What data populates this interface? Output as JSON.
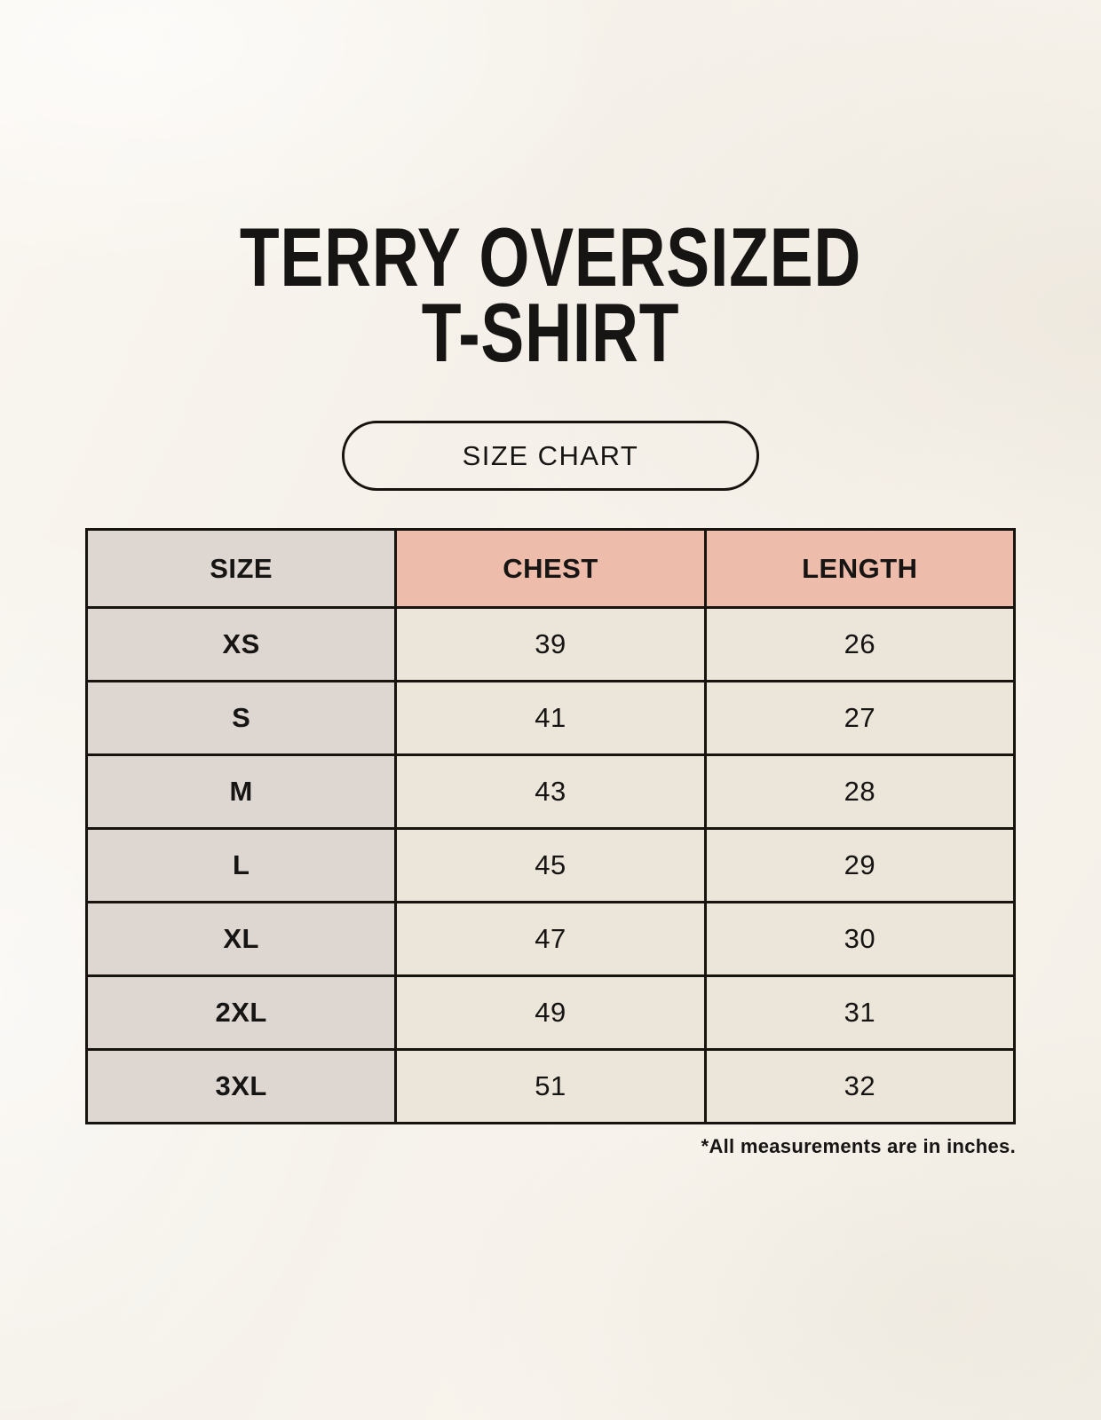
{
  "header": {
    "title_line1": "TERRY OVERSIZED",
    "title_line2": "T-SHIRT"
  },
  "size_chart_button": {
    "label": "SIZE CHART"
  },
  "chart_data": {
    "type": "table",
    "title": "TERRY OVERSIZED T-SHIRT",
    "columns": [
      "SIZE",
      "CHEST",
      "LENGTH"
    ],
    "rows": [
      [
        "XS",
        "39",
        "26"
      ],
      [
        "S",
        "41",
        "27"
      ],
      [
        "M",
        "43",
        "28"
      ],
      [
        "L",
        "45",
        "29"
      ],
      [
        "XL",
        "47",
        "30"
      ],
      [
        "2XL",
        "49",
        "31"
      ],
      [
        "3XL",
        "51",
        "32"
      ]
    ],
    "units": "inches"
  },
  "footnote": "*All measurements are in inches.",
  "colors": {
    "background": "#f6f2eb",
    "size_column_bg": "#ddd6d1",
    "header_accent_bg": "#edbcab",
    "data_cell_bg": "#ece5d9",
    "border": "#17130e",
    "text": "#171513"
  }
}
